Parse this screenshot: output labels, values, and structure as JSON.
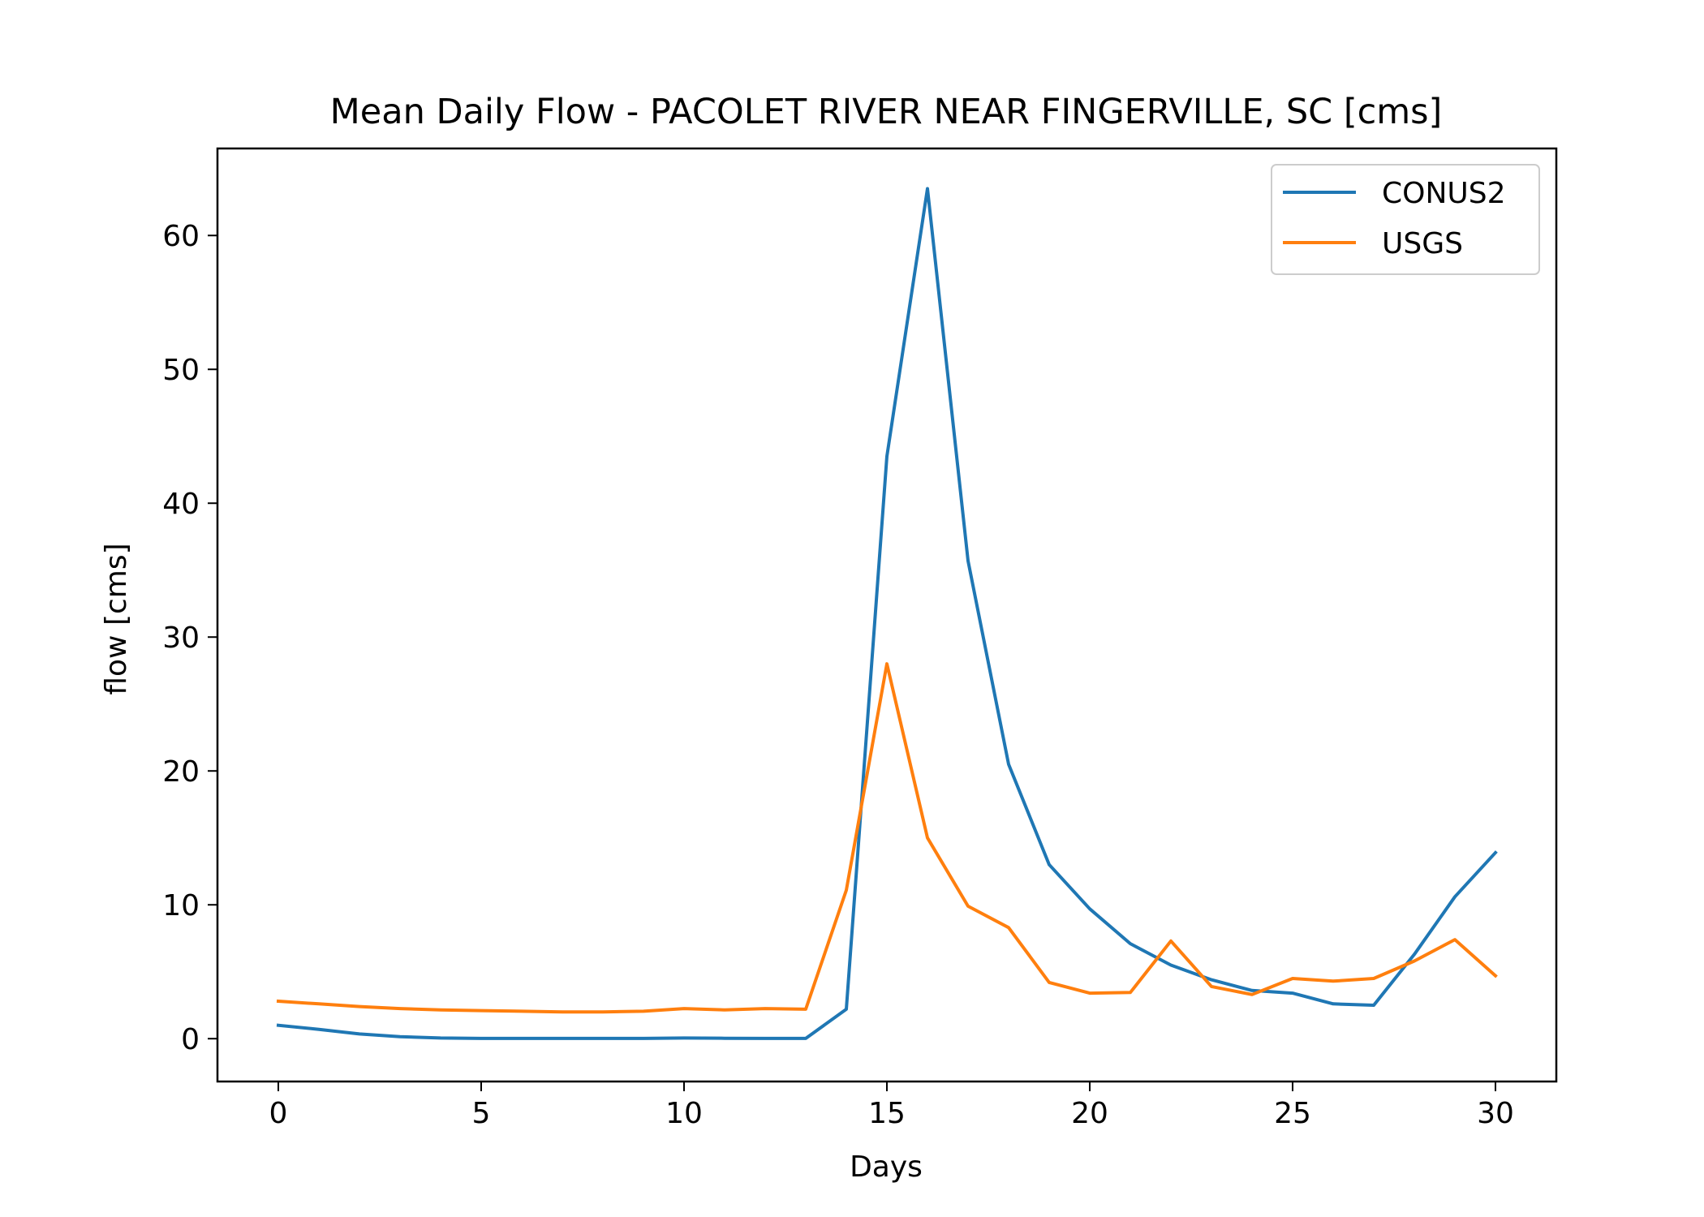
{
  "chart_data": {
    "type": "line",
    "title": "Mean Daily Flow - PACOLET RIVER NEAR FINGERVILLE, SC [cms]",
    "xlabel": "Days",
    "ylabel": "flow [cms]",
    "xlim": [
      -1.5,
      31.5
    ],
    "ylim": [
      -3.2,
      66.5
    ],
    "x_ticks": [
      0,
      5,
      10,
      15,
      20,
      25,
      30
    ],
    "y_ticks": [
      0,
      10,
      20,
      30,
      40,
      50,
      60
    ],
    "grid": false,
    "legend_position": "top-right",
    "x": [
      0,
      1,
      2,
      3,
      4,
      5,
      6,
      7,
      8,
      9,
      10,
      11,
      12,
      13,
      14,
      15,
      16,
      17,
      18,
      19,
      20,
      21,
      22,
      23,
      24,
      25,
      26,
      27,
      28,
      29,
      30
    ],
    "series": [
      {
        "name": "CONUS2",
        "color": "#1f77b4",
        "values": [
          1.0,
          0.7,
          0.35,
          0.15,
          0.05,
          0.02,
          0.02,
          0.02,
          0.02,
          0.02,
          0.05,
          0.03,
          0.02,
          0.02,
          2.2,
          43.5,
          63.5,
          35.7,
          20.5,
          13.0,
          9.7,
          7.1,
          5.5,
          4.4,
          3.6,
          3.4,
          2.6,
          2.5,
          6.3,
          10.6,
          13.9
        ]
      },
      {
        "name": "USGS",
        "color": "#ff7f0e",
        "values": [
          2.8,
          2.6,
          2.4,
          2.25,
          2.15,
          2.1,
          2.05,
          2.0,
          2.0,
          2.05,
          2.25,
          2.15,
          2.25,
          2.2,
          11.1,
          28.0,
          15.0,
          9.9,
          8.3,
          4.2,
          3.4,
          3.45,
          7.3,
          3.9,
          3.3,
          4.5,
          4.3,
          4.5,
          5.8,
          7.4,
          4.7
        ]
      }
    ]
  }
}
